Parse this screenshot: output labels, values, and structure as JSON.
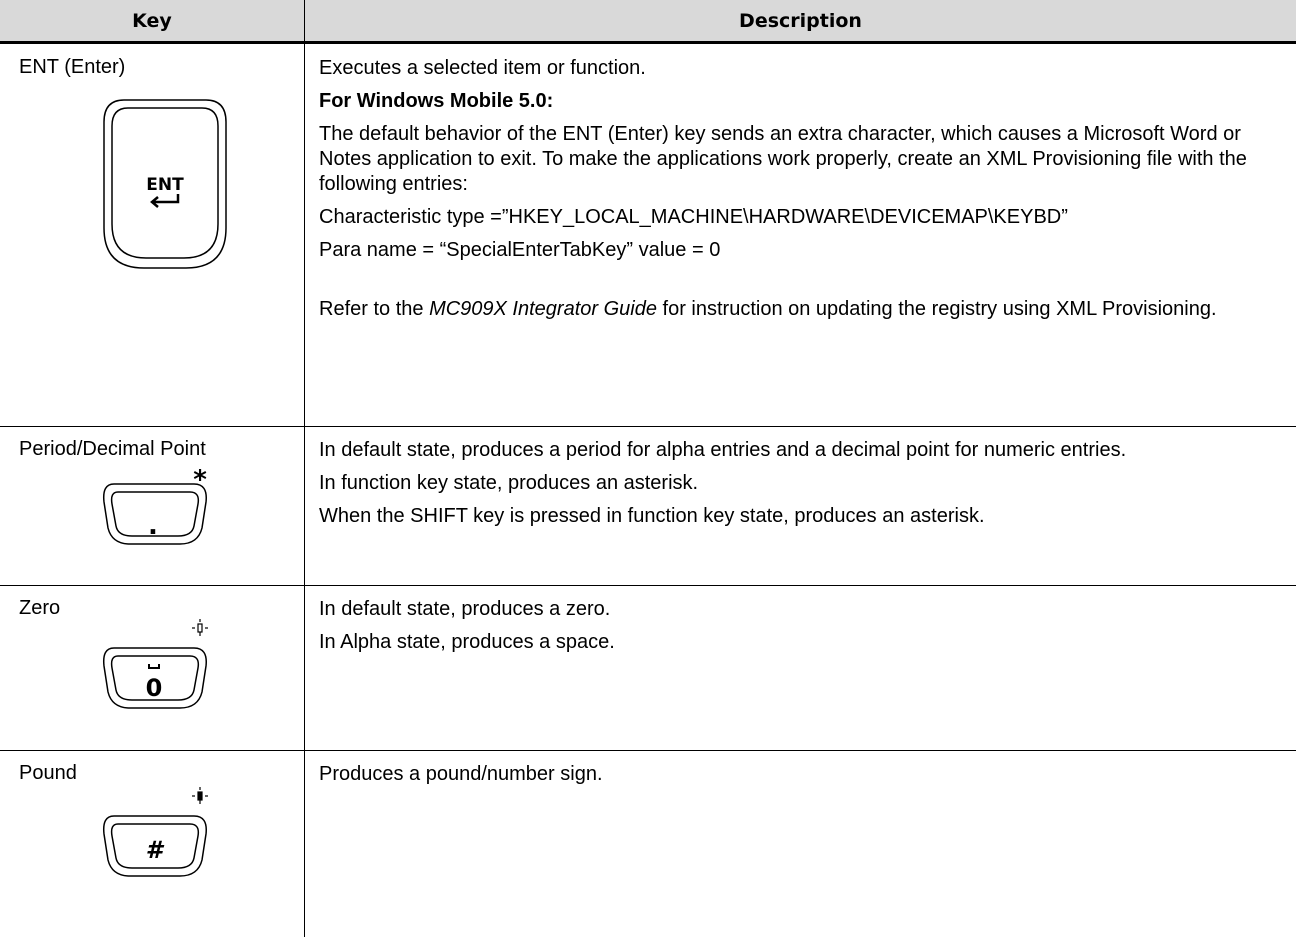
{
  "table": {
    "header": [
      "Key",
      "Description"
    ],
    "rows": [
      {
        "key": "ENT (Enter)",
        "icon": {
          "main": "ENT"
        },
        "description": [
          "Executes a selected item or function.",
          "For Windows Mobile 5.0:",
          "The default behavior of the ENT (Enter) key sends an extra character, which causes a Microsoft Word or Notes application to exit. To make the applications work properly, create an XML Provisioning file with the following entries:",
          "Characteristic type =”HKEY_LOCAL_MACHINE\\HARDWARE\\DEVICEMAP\\KEYBD”",
          "Para name = “SpecialEnterTabKey” value = 0",
          {
            "before": "Refer to the ",
            "italic": "MC909X Integrator Guide",
            "after": " for instruction on updating the registry using XML Provisioning."
          }
        ]
      },
      {
        "key": "Period/Decimal Point",
        "icon": {
          "main": ".",
          "corner": "*"
        },
        "description": [
          "In default state, produces a period for alpha entries and a decimal point for numeric entries.",
          "In function key state, produces an asterisk.",
          "When the SHIFT key is pressed in function key state, produces an asterisk."
        ]
      },
      {
        "key": "Zero",
        "icon": {
          "main": "0"
        },
        "description": [
          "In default state, produces a zero.",
          "In Alpha state, produces a space."
        ]
      },
      {
        "key": "Pound",
        "icon": {
          "main": "#"
        },
        "description": [
          "Produces a pound/number sign."
        ]
      }
    ]
  }
}
